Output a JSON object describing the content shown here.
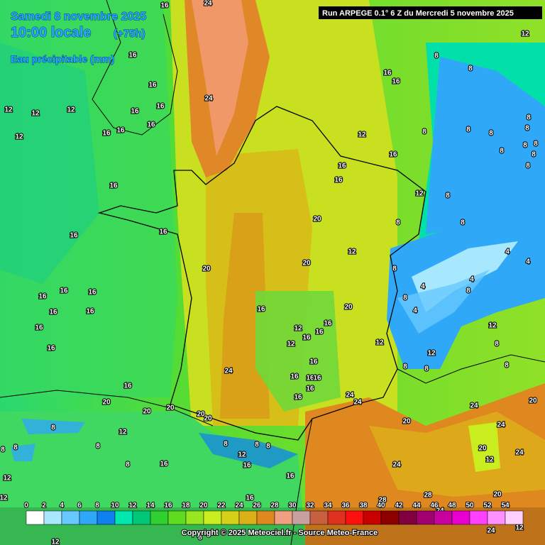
{
  "header": {
    "date": "Samedi 8 novembre 2025",
    "time": "10:00 locale",
    "lead": "(+75h)",
    "variable": "Eau précipitable (mm)",
    "run": "Run ARPEGE 0.1° 6 Z du Mercredi 5 novembre 2025"
  },
  "legend": {
    "levels": [
      0,
      2,
      4,
      6,
      8,
      10,
      12,
      14,
      16,
      18,
      20,
      22,
      24,
      26,
      28,
      30,
      32,
      34,
      36,
      38,
      40,
      42,
      44,
      46,
      48,
      50,
      52,
      54
    ],
    "colors": [
      "#ffffff",
      "#a8e8ff",
      "#66c8ff",
      "#30a8f8",
      "#1080f0",
      "#00e8b0",
      "#00c878",
      "#30d030",
      "#60dc20",
      "#98e620",
      "#c8ee20",
      "#d8d018",
      "#dcb018",
      "#e08820",
      "#f0a080",
      "#c8a0a0",
      "#c86040",
      "#e03020",
      "#ff1010",
      "#c80000",
      "#8c0000",
      "#800040",
      "#a00070",
      "#c800a0",
      "#e800d0",
      "#ff40ff",
      "#ff90ff",
      "#ffd0ff"
    ]
  },
  "map_labels": [
    "24",
    "16",
    "16",
    "16",
    "16",
    "16",
    "16",
    "16",
    "16",
    "12",
    "12",
    "12",
    "12",
    "16",
    "16",
    "16",
    "20",
    "16",
    "16",
    "16",
    "16",
    "16",
    "16",
    "16",
    "16",
    "20",
    "20",
    "20",
    "20",
    "20",
    "24",
    "24",
    "16",
    "12",
    "12",
    "16",
    "16",
    "16",
    "16",
    "16",
    "16",
    "16",
    "16",
    "16",
    "20",
    "20",
    "20",
    "16",
    "12",
    "12",
    "8",
    "8",
    "12",
    "8",
    "8",
    "4",
    "8",
    "4",
    "4",
    "8",
    "12",
    "8",
    "8",
    "12",
    "8",
    "8",
    "12",
    "8",
    "8",
    "16",
    "16",
    "12",
    "16",
    "16",
    "8",
    "8",
    "8",
    "8",
    "8",
    "8",
    "8",
    "8",
    "8",
    "8",
    "4",
    "4",
    "24",
    "24",
    "20",
    "24",
    "24",
    "24",
    "20",
    "24",
    "28",
    "8",
    "12",
    "8",
    "8",
    "12",
    "8",
    "8",
    "16",
    "16",
    "8",
    "16",
    "16",
    "28",
    "24",
    "20",
    "8",
    "8",
    "12",
    "12",
    "12",
    "20",
    "24",
    "12",
    "12",
    "8"
  ],
  "footer": {
    "copyright": "Copyright © 2025 Meteociel.fr - Source Meteo-France"
  }
}
